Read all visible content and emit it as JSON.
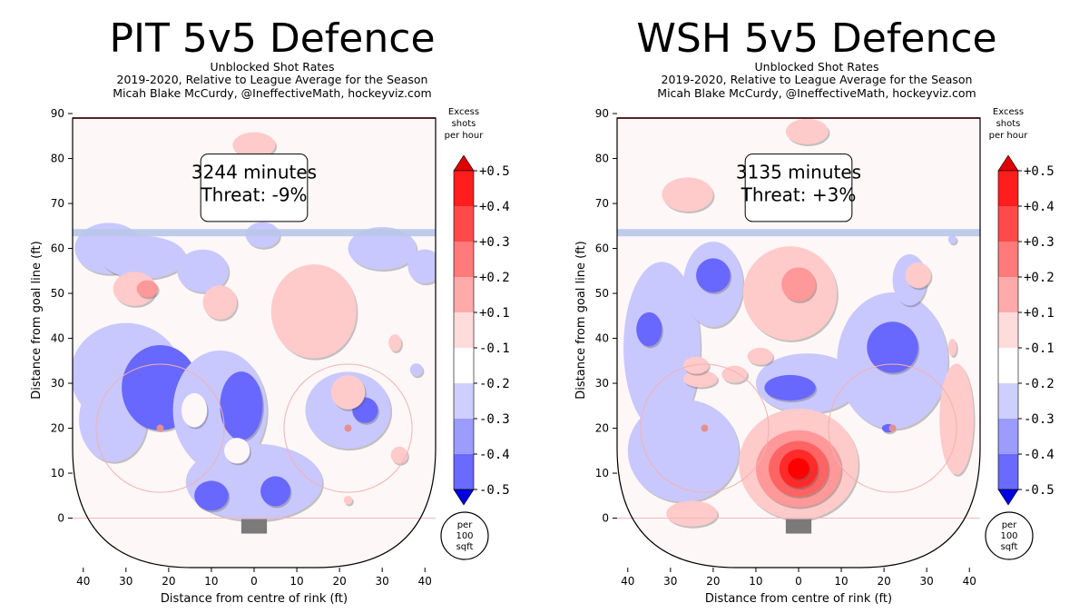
{
  "chart_data": [
    {
      "type": "heatmap",
      "title": "PIT 5v5 Defence",
      "subtitle_lines": [
        "Unblocked Shot Rates",
        "2019-2020, Relative to League Average for the Season",
        "Micah Blake McCurdy, @IneffectiveMath, hockeyviz.com"
      ],
      "minutes_label": "3244 minutes",
      "threat_label": "Threat: -9%",
      "xlabel": "Distance from centre of rink (ft)",
      "ylabel": "Distance from goal line (ft)",
      "x_ticks": [
        "40",
        "30",
        "20",
        "10",
        "0",
        "10",
        "20",
        "30",
        "40"
      ],
      "y_ticks": [
        "0",
        "10",
        "20",
        "30",
        "40",
        "50",
        "60",
        "70",
        "80",
        "90"
      ],
      "xlim": [
        -42.5,
        42.5
      ],
      "ylim": [
        -11,
        89
      ],
      "colorbar_title": [
        "Excess",
        "shots",
        "per hour"
      ],
      "colorbar_levels": [
        "+0.5",
        "+0.4",
        "+0.3",
        "+0.2",
        "+0.1",
        "-0.1",
        "-0.2",
        "-0.3",
        "-0.4",
        "-0.5"
      ],
      "unit_badge": [
        "per",
        "100",
        "sqft"
      ],
      "blobs": [
        {
          "x": -34,
          "y": 60,
          "rx": 8,
          "ry": 6,
          "v": -0.15
        },
        {
          "x": -26,
          "y": 58,
          "rx": 10,
          "ry": 5,
          "v": -0.15
        },
        {
          "x": -12,
          "y": 55,
          "rx": 6,
          "ry": 5,
          "v": -0.15
        },
        {
          "x": -30,
          "y": 32,
          "rx": 13,
          "ry": 12,
          "v": -0.15
        },
        {
          "x": -33,
          "y": 22,
          "rx": 8,
          "ry": 10,
          "v": -0.15
        },
        {
          "x": -22,
          "y": 29,
          "rx": 9,
          "ry": 10,
          "v": -0.25
        },
        {
          "x": -8,
          "y": 24,
          "rx": 11,
          "ry": 14,
          "v": -0.15
        },
        {
          "x": -3,
          "y": 25,
          "rx": 5,
          "ry": 8,
          "v": -0.25
        },
        {
          "x": 0,
          "y": 8,
          "rx": 16,
          "ry": 9,
          "v": -0.15
        },
        {
          "x": -10,
          "y": 5,
          "rx": 4,
          "ry": 3.5,
          "v": -0.28
        },
        {
          "x": 5,
          "y": 6,
          "rx": 3.5,
          "ry": 3.5,
          "v": -0.28
        },
        {
          "x": 2,
          "y": 63,
          "rx": 4,
          "ry": 3,
          "v": -0.15
        },
        {
          "x": 30,
          "y": 60,
          "rx": 8,
          "ry": 5,
          "v": -0.15
        },
        {
          "x": 40,
          "y": 56,
          "rx": 4,
          "ry": 4,
          "v": -0.15
        },
        {
          "x": 22,
          "y": 24,
          "rx": 10,
          "ry": 9,
          "v": -0.15
        },
        {
          "x": 26,
          "y": 24,
          "rx": 3,
          "ry": 3,
          "v": -0.25
        },
        {
          "x": 38,
          "y": 33,
          "rx": 1.5,
          "ry": 1.5,
          "v": -0.15
        },
        {
          "x": -28,
          "y": 51,
          "rx": 5,
          "ry": 4,
          "v": 0.15
        },
        {
          "x": -25,
          "y": 51,
          "rx": 2.5,
          "ry": 2,
          "v": 0.25
        },
        {
          "x": -8,
          "y": 48,
          "rx": 4,
          "ry": 4,
          "v": 0.15
        },
        {
          "x": 14,
          "y": 46,
          "rx": 10,
          "ry": 11,
          "v": 0.15
        },
        {
          "x": 22,
          "y": 28,
          "rx": 4,
          "ry": 4,
          "v": 0.15
        },
        {
          "x": 0,
          "y": 83,
          "rx": 5,
          "ry": 3,
          "v": 0.15
        },
        {
          "x": 33,
          "y": 39,
          "rx": 1.5,
          "ry": 2,
          "v": 0.15
        },
        {
          "x": 34,
          "y": 14,
          "rx": 2,
          "ry": 2,
          "v": 0.15
        },
        {
          "x": 22,
          "y": 4,
          "rx": 1,
          "ry": 1,
          "v": 0.15
        },
        {
          "x": -4,
          "y": 15,
          "rx": 3,
          "ry": 3,
          "v": 0.02
        },
        {
          "x": -14,
          "y": 24,
          "rx": 3,
          "ry": 4,
          "v": 0.02
        }
      ]
    },
    {
      "type": "heatmap",
      "title": "WSH 5v5 Defence",
      "subtitle_lines": [
        "Unblocked Shot Rates",
        "2019-2020, Relative to League Average for the Season",
        "Micah Blake McCurdy, @IneffectiveMath, hockeyviz.com"
      ],
      "minutes_label": "3135 minutes",
      "threat_label": "Threat: +3%",
      "xlabel": "Distance from centre of rink (ft)",
      "ylabel": "Distance from goal line (ft)",
      "x_ticks": [
        "40",
        "30",
        "20",
        "10",
        "0",
        "10",
        "20",
        "30",
        "40"
      ],
      "y_ticks": [
        "0",
        "10",
        "20",
        "30",
        "40",
        "50",
        "60",
        "70",
        "80",
        "90"
      ],
      "xlim": [
        -42.5,
        42.5
      ],
      "ylim": [
        -11,
        89
      ],
      "colorbar_title": [
        "Excess",
        "shots",
        "per hour"
      ],
      "colorbar_levels": [
        "+0.5",
        "+0.4",
        "+0.3",
        "+0.2",
        "+0.1",
        "-0.1",
        "-0.2",
        "-0.3",
        "-0.4",
        "-0.5"
      ],
      "unit_badge": [
        "per",
        "100",
        "sqft"
      ],
      "blobs": [
        {
          "x": -32,
          "y": 38,
          "rx": 9,
          "ry": 20,
          "v": -0.15
        },
        {
          "x": -27,
          "y": 15,
          "rx": 13,
          "ry": 12,
          "v": -0.15
        },
        {
          "x": -20,
          "y": 52,
          "rx": 7,
          "ry": 10,
          "v": -0.15
        },
        {
          "x": -20,
          "y": 54,
          "rx": 4,
          "ry": 4,
          "v": -0.25
        },
        {
          "x": -35,
          "y": 42,
          "rx": 3,
          "ry": 4,
          "v": -0.25
        },
        {
          "x": 2,
          "y": 30,
          "rx": 12,
          "ry": 7,
          "v": -0.15
        },
        {
          "x": -2,
          "y": 29,
          "rx": 6,
          "ry": 3,
          "v": -0.25
        },
        {
          "x": 22,
          "y": 35,
          "rx": 13,
          "ry": 16,
          "v": -0.15
        },
        {
          "x": 22,
          "y": 38,
          "rx": 6,
          "ry": 6,
          "v": -0.25
        },
        {
          "x": 26,
          "y": 53,
          "rx": 4,
          "ry": 6,
          "v": -0.15
        },
        {
          "x": 21,
          "y": 20,
          "rx": 1.5,
          "ry": 1,
          "v": -0.3
        },
        {
          "x": 36,
          "y": 62,
          "rx": 1,
          "ry": 1,
          "v": -0.15
        },
        {
          "x": -26,
          "y": 72,
          "rx": 6,
          "ry": 4,
          "v": 0.15
        },
        {
          "x": -2,
          "y": 50,
          "rx": 11,
          "ry": 11,
          "v": 0.15
        },
        {
          "x": 0,
          "y": 52,
          "rx": 4,
          "ry": 4,
          "v": 0.25
        },
        {
          "x": -9,
          "y": 36,
          "rx": 3,
          "ry": 2,
          "v": 0.15
        },
        {
          "x": -15,
          "y": 32,
          "rx": 3,
          "ry": 2,
          "v": 0.15
        },
        {
          "x": -23,
          "y": 31,
          "rx": 4,
          "ry": 2,
          "v": 0.15
        },
        {
          "x": 2,
          "y": 86,
          "rx": 5,
          "ry": 3,
          "v": 0.15
        },
        {
          "x": 28,
          "y": 54,
          "rx": 3,
          "ry": 3,
          "v": 0.15
        },
        {
          "x": 37,
          "y": 22,
          "rx": 4,
          "ry": 13,
          "v": 0.15
        },
        {
          "x": 36,
          "y": 38,
          "rx": 1,
          "ry": 2,
          "v": 0.15
        },
        {
          "x": -24,
          "y": 34,
          "rx": 3,
          "ry": 2,
          "v": 0.15
        },
        {
          "x": -25,
          "y": 1,
          "rx": 6,
          "ry": 3,
          "v": 0.15
        },
        {
          "x": 0,
          "y": 12,
          "rx": 14,
          "ry": 13,
          "v": 0.15
        },
        {
          "x": 0,
          "y": 11,
          "rx": 10,
          "ry": 9,
          "v": 0.25
        },
        {
          "x": 0,
          "y": 11,
          "rx": 7,
          "ry": 6.5,
          "v": 0.35
        },
        {
          "x": 0,
          "y": 11,
          "rx": 4.5,
          "ry": 4.5,
          "v": 0.45
        },
        {
          "x": 0,
          "y": 11,
          "rx": 2.5,
          "ry": 2.5,
          "v": 0.5
        }
      ]
    }
  ]
}
